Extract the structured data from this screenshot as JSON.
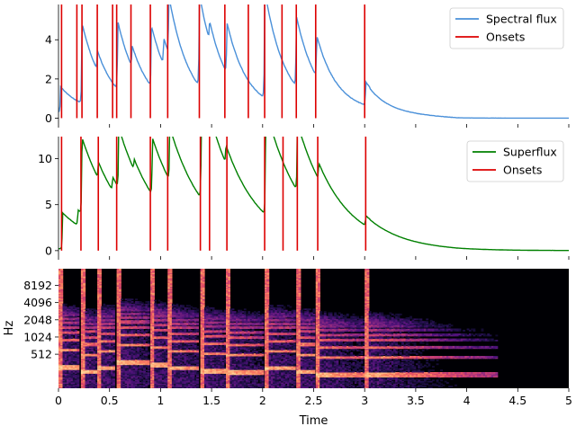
{
  "chart_data": [
    {
      "type": "line",
      "yticks": [
        0,
        2,
        4
      ],
      "ylim": [
        -0.3,
        5.8
      ],
      "xlim": [
        0,
        5
      ],
      "legend_position": "top-right",
      "series": [
        {
          "name": "Spectral flux",
          "color": "#4a90d9",
          "peaks": [
            {
              "t": 0.02,
              "h": 1.3
            },
            {
              "t": 0.23,
              "h": 4.1
            },
            {
              "t": 0.38,
              "h": 1.0
            },
            {
              "t": 0.58,
              "h": 3.5
            },
            {
              "t": 0.72,
              "h": 1.1
            },
            {
              "t": 0.91,
              "h": 3.1
            },
            {
              "t": 1.03,
              "h": 1.4
            },
            {
              "t": 1.08,
              "h": 3.0
            },
            {
              "t": 1.38,
              "h": 4.7
            },
            {
              "t": 1.48,
              "h": 1.0
            },
            {
              "t": 1.65,
              "h": 2.6
            },
            {
              "t": 2.02,
              "h": 5.5
            },
            {
              "t": 2.33,
              "h": 3.6
            },
            {
              "t": 2.53,
              "h": 2.1
            },
            {
              "t": 3.01,
              "h": 1.2
            }
          ]
        },
        {
          "name": "Onsets",
          "color": "#dd0000",
          "times": [
            0.03,
            0.18,
            0.23,
            0.38,
            0.53,
            0.57,
            0.71,
            0.9,
            1.07,
            1.38,
            1.63,
            1.86,
            2.02,
            2.19,
            2.33,
            2.52,
            3.0
          ]
        }
      ]
    },
    {
      "type": "line",
      "yticks": [
        0,
        5,
        10
      ],
      "ylim": [
        -0.6,
        12.4
      ],
      "xlim": [
        0,
        5
      ],
      "legend_position": "top-right",
      "series": [
        {
          "name": "Superflux",
          "color": "#008000",
          "peaks": [
            {
              "t": 0.04,
              "h": 3.9
            },
            {
              "t": 0.19,
              "h": 1.7
            },
            {
              "t": 0.23,
              "h": 8.3
            },
            {
              "t": 0.39,
              "h": 1.8
            },
            {
              "t": 0.53,
              "h": 1.5
            },
            {
              "t": 0.59,
              "h": 6.6
            },
            {
              "t": 0.74,
              "h": 1.2
            },
            {
              "t": 0.92,
              "h": 6.2
            },
            {
              "t": 1.09,
              "h": 5.8
            },
            {
              "t": 1.4,
              "h": 10.1
            },
            {
              "t": 1.48,
              "h": 2.3
            },
            {
              "t": 1.64,
              "h": 2.0
            },
            {
              "t": 2.03,
              "h": 11.6
            },
            {
              "t": 2.34,
              "h": 7.4
            },
            {
              "t": 2.55,
              "h": 1.8
            },
            {
              "t": 3.01,
              "h": 1.1
            }
          ]
        },
        {
          "name": "Onsets",
          "color": "#dd0000",
          "times": [
            0.03,
            0.22,
            0.39,
            0.57,
            0.9,
            1.07,
            1.39,
            1.48,
            1.65,
            2.02,
            2.2,
            2.34,
            2.54,
            3.01
          ]
        }
      ]
    },
    {
      "type": "heatmap",
      "ylabel": "Hz",
      "xlabel": "Time",
      "xlim": [
        0,
        5
      ],
      "xticks": [
        0,
        0.5,
        1,
        1.5,
        2,
        2.5,
        3,
        3.5,
        4,
        4.5,
        5
      ],
      "xtick_labels": [
        "0",
        "0.5",
        "1",
        "1.5",
        "2",
        "2.5",
        "3",
        "3.5",
        "4",
        "4.5",
        "5"
      ],
      "yticks": [
        512,
        1024,
        2048,
        4096,
        8192
      ],
      "ytick_labels": [
        "512",
        "1024",
        "2048",
        "4096",
        "8192"
      ],
      "colormap": "magma",
      "notes": [
        {
          "t": 0.0,
          "d": 0.2,
          "f": 300
        },
        {
          "t": 0.22,
          "d": 0.16,
          "f": 250
        },
        {
          "t": 0.38,
          "d": 0.17,
          "f": 290
        },
        {
          "t": 0.57,
          "d": 0.32,
          "f": 370
        },
        {
          "t": 0.9,
          "d": 0.17,
          "f": 330
        },
        {
          "t": 1.07,
          "d": 0.3,
          "f": 290
        },
        {
          "t": 1.39,
          "d": 0.25,
          "f": 260
        },
        {
          "t": 1.64,
          "d": 0.37,
          "f": 245
        },
        {
          "t": 2.02,
          "d": 0.3,
          "f": 290
        },
        {
          "t": 2.33,
          "d": 0.18,
          "f": 250
        },
        {
          "t": 2.52,
          "d": 0.48,
          "f": 220
        },
        {
          "t": 3.0,
          "d": 1.3,
          "f": 220
        }
      ]
    }
  ]
}
